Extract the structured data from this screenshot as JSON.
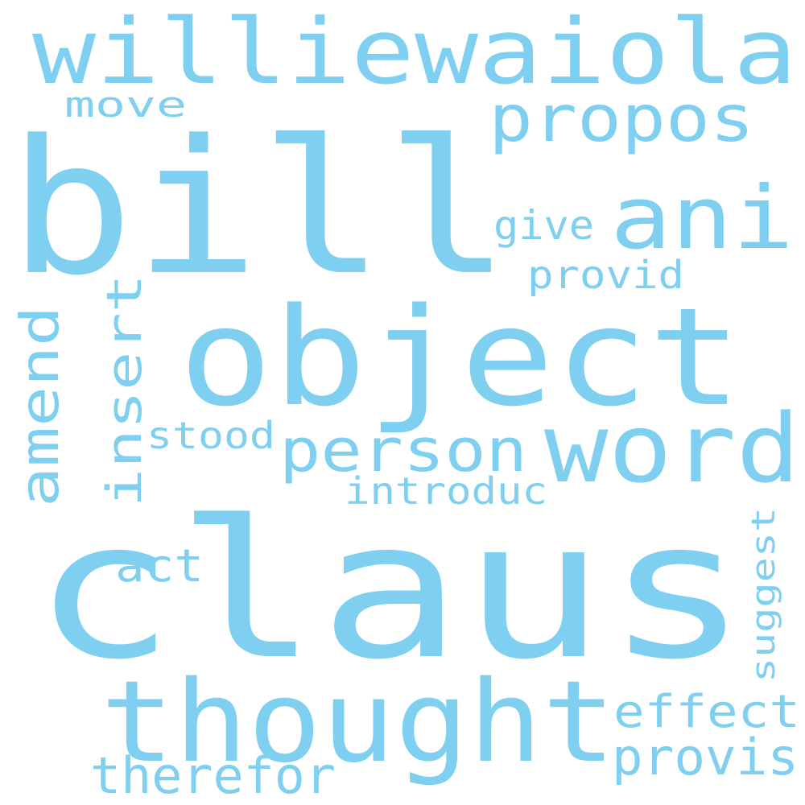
{
  "word_color": "#7ecff0",
  "background": "#ffffff",
  "words": {
    "claus": "claus",
    "bill": "bill",
    "object": "object",
    "thought": "thought",
    "williewaiola": "williewaiola",
    "word": "word",
    "ani": "ani",
    "propos": "propos",
    "person": "person",
    "amend": "amend",
    "insert": "insert",
    "provis": "provis",
    "therefor": "therefor",
    "effect": "effect",
    "introduc": "introduc",
    "stood": "stood",
    "provid": "provid",
    "suggest": "suggest",
    "give": "give",
    "move": "move",
    "act": "act"
  }
}
